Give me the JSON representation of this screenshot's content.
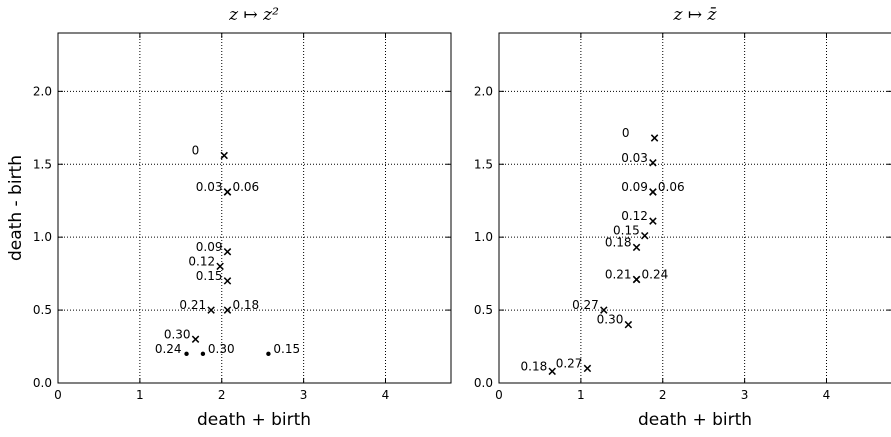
{
  "chart_data": [
    {
      "type": "scatter",
      "title": "z ↦ z²",
      "xlabel": "death + birth",
      "ylabel": "death - birth",
      "xlim": [
        0,
        4.8
      ],
      "ylim": [
        0,
        2.4
      ],
      "xticks": [
        "0",
        "1",
        "2",
        "3",
        "4"
      ],
      "yticks": [
        "0.0",
        "0.5",
        "1.0",
        "1.5",
        "2.0"
      ],
      "grid": true,
      "points": [
        {
          "x": 2.03,
          "y": 1.56,
          "marker": "x",
          "label": "0",
          "label_side": "left-far"
        },
        {
          "x": 2.07,
          "y": 1.31,
          "marker": "x",
          "label": "0.03",
          "label_side": "left"
        },
        {
          "x": 2.07,
          "y": 1.31,
          "marker": "x",
          "label": "0.06",
          "label_side": "right"
        },
        {
          "x": 2.07,
          "y": 0.9,
          "marker": "x",
          "label": "0.09",
          "label_side": "left"
        },
        {
          "x": 1.98,
          "y": 0.8,
          "marker": "x",
          "label": "0.12",
          "label_side": "left"
        },
        {
          "x": 2.07,
          "y": 0.7,
          "marker": "x",
          "label": "0.15",
          "label_side": "left"
        },
        {
          "x": 1.87,
          "y": 0.5,
          "marker": "x",
          "label": "0.21",
          "label_side": "left"
        },
        {
          "x": 2.07,
          "y": 0.5,
          "marker": "x",
          "label": "0.18",
          "label_side": "right"
        },
        {
          "x": 1.68,
          "y": 0.3,
          "marker": "x",
          "label": "0.30",
          "label_side": "left"
        },
        {
          "x": 1.57,
          "y": 0.2,
          "marker": "dot",
          "label": "0.24",
          "label_side": "left"
        },
        {
          "x": 1.77,
          "y": 0.2,
          "marker": "dot",
          "label": "0.30",
          "label_side": "right"
        },
        {
          "x": 2.57,
          "y": 0.2,
          "marker": "dot",
          "label": "0.15",
          "label_side": "right"
        }
      ]
    },
    {
      "type": "scatter",
      "title": "z ↦ z̄",
      "xlabel": "death + birth",
      "ylabel": "",
      "xlim": [
        0,
        4.8
      ],
      "ylim": [
        0,
        2.4
      ],
      "xticks": [
        "0",
        "1",
        "2",
        "3",
        "4"
      ],
      "yticks": [
        "0.0",
        "0.5",
        "1.0",
        "1.5",
        "2.0"
      ],
      "grid": true,
      "points": [
        {
          "x": 1.9,
          "y": 1.68,
          "marker": "x",
          "label": "0",
          "label_side": "left-far"
        },
        {
          "x": 1.88,
          "y": 1.51,
          "marker": "x",
          "label": "0.03",
          "label_side": "left"
        },
        {
          "x": 1.88,
          "y": 1.31,
          "marker": "x",
          "label": "0.09",
          "label_side": "left"
        },
        {
          "x": 1.88,
          "y": 1.31,
          "marker": "x",
          "label": "0.06",
          "label_side": "right"
        },
        {
          "x": 1.88,
          "y": 1.11,
          "marker": "x",
          "label": "0.12",
          "label_side": "left"
        },
        {
          "x": 1.78,
          "y": 1.01,
          "marker": "x",
          "label": "0.15",
          "label_side": "left"
        },
        {
          "x": 1.68,
          "y": 0.93,
          "marker": "x",
          "label": "0.18",
          "label_side": "left"
        },
        {
          "x": 1.68,
          "y": 0.71,
          "marker": "x",
          "label": "0.21",
          "label_side": "left"
        },
        {
          "x": 1.68,
          "y": 0.71,
          "marker": "x",
          "label": "0.24",
          "label_side": "right"
        },
        {
          "x": 1.28,
          "y": 0.5,
          "marker": "x",
          "label": "0.27",
          "label_side": "left"
        },
        {
          "x": 1.58,
          "y": 0.4,
          "marker": "x",
          "label": "0.30",
          "label_side": "left"
        },
        {
          "x": 0.65,
          "y": 0.08,
          "marker": "x",
          "label": "0.18",
          "label_side": "left"
        },
        {
          "x": 1.08,
          "y": 0.1,
          "marker": "x",
          "label": "0.27",
          "label_side": "left"
        }
      ]
    }
  ]
}
